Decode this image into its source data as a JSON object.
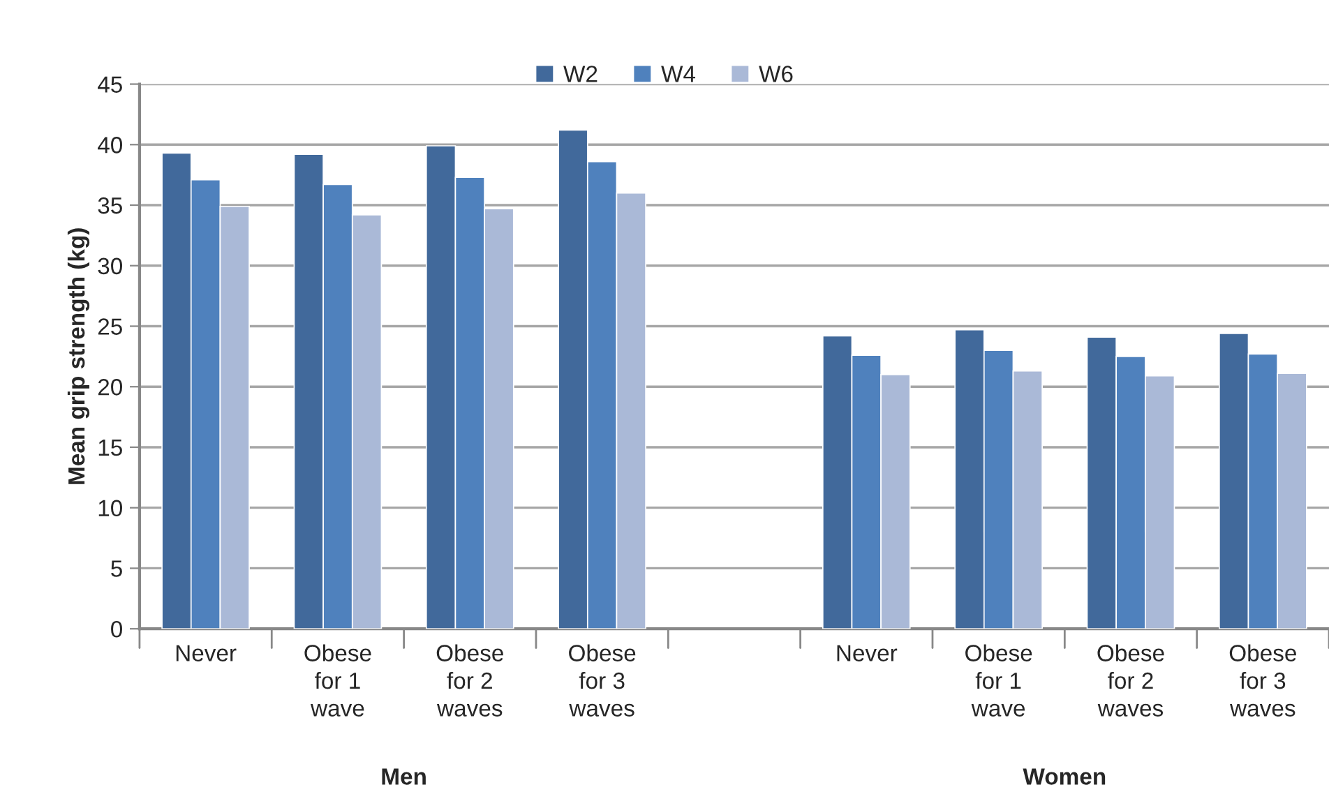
{
  "chart_data": {
    "type": "bar",
    "ylabel": "Mean grip strength (kg)",
    "categories": [
      "Never",
      "Obese\nfor 1\nwave",
      "Obese\nfor 2\nwaves",
      "Obese\nfor 3\nwaves",
      null,
      "Never",
      "Obese\nfor 1\nwave",
      "Obese\nfor 2\nwaves",
      "Obese\nfor 3\nwaves"
    ],
    "series": [
      {
        "name": "W2",
        "color": "#41699b",
        "values": [
          39.3,
          39.2,
          39.9,
          41.2,
          null,
          24.2,
          24.7,
          24.1,
          24.4
        ]
      },
      {
        "name": "W4",
        "color": "#4f81bd",
        "values": [
          37.1,
          36.7,
          37.3,
          38.6,
          null,
          22.6,
          23.0,
          22.5,
          22.7
        ]
      },
      {
        "name": "W6",
        "color": "#aab9d7",
        "values": [
          34.9,
          34.2,
          34.7,
          36.0,
          null,
          21.0,
          21.3,
          20.9,
          21.1
        ]
      }
    ],
    "annotations": [
      "Men",
      "Women"
    ],
    "ylim": [
      0,
      45
    ],
    "yticks": [
      0,
      5,
      10,
      15,
      20,
      25,
      30,
      35,
      40,
      45
    ],
    "grid": "y",
    "legend": "top"
  }
}
